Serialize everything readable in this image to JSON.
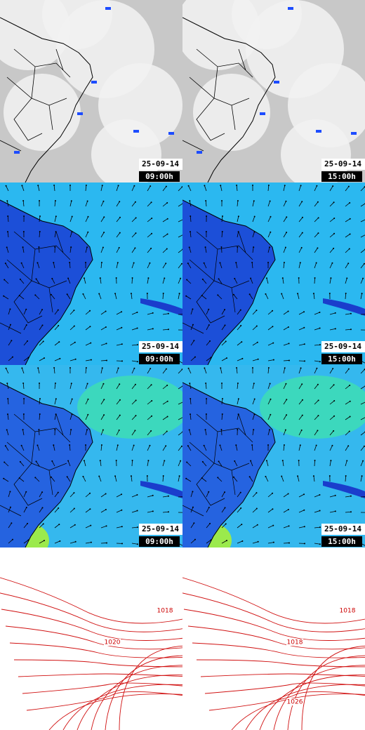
{
  "panels": [
    {
      "kind": "satellite",
      "date": "25-09-14",
      "time": "09:00h"
    },
    {
      "kind": "satellite",
      "date": "25-09-14",
      "time": "15:00h"
    },
    {
      "kind": "wind",
      "date": "25-09-14",
      "time": "09:00h"
    },
    {
      "kind": "wind",
      "date": "25-09-14",
      "time": "15:00h"
    },
    {
      "kind": "wind2",
      "date": "25-09-14",
      "time": "09:00h"
    },
    {
      "kind": "wind2",
      "date": "25-09-14",
      "time": "15:00h"
    },
    {
      "kind": "pressure",
      "labels": [
        "1018",
        "1020"
      ]
    },
    {
      "kind": "pressure",
      "labels": [
        "1018",
        "1018",
        "1026"
      ]
    }
  ]
}
